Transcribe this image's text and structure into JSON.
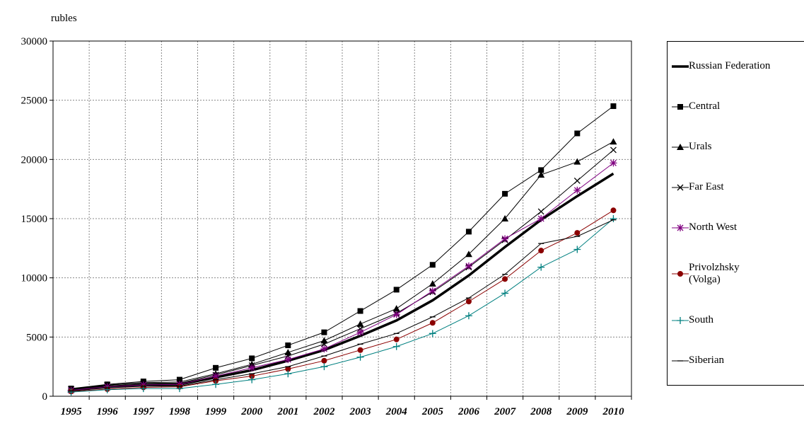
{
  "chart_data": {
    "type": "line",
    "y_label": "rubles",
    "categories": [
      "1995",
      "1996",
      "1997",
      "1998",
      "1999",
      "2000",
      "2001",
      "2002",
      "2003",
      "2004",
      "2005",
      "2006",
      "2007",
      "2008",
      "2009",
      "2010"
    ],
    "ylim": [
      0,
      30000
    ],
    "yticks": [
      0,
      5000,
      10000,
      15000,
      20000,
      25000,
      30000
    ],
    "grid": true,
    "series": [
      {
        "name": "Russian Federation",
        "color": "#000000",
        "marker": "none",
        "width": 3.5,
        "values": [
          550,
          800,
          950,
          1000,
          1600,
          2200,
          3000,
          3900,
          5100,
          6400,
          8100,
          10200,
          12600,
          14900,
          16900,
          18800
        ]
      },
      {
        "name": "Central",
        "color": "#000000",
        "marker": "square",
        "width": 1,
        "values": [
          650,
          1000,
          1250,
          1400,
          2400,
          3200,
          4300,
          5400,
          7200,
          9000,
          11100,
          13900,
          17100,
          19100,
          22200,
          24500
        ]
      },
      {
        "name": "Urals",
        "color": "#000000",
        "marker": "triangle",
        "width": 1,
        "values": [
          600,
          950,
          1150,
          1200,
          1900,
          2700,
          3700,
          4700,
          6100,
          7400,
          9500,
          12000,
          15000,
          18700,
          19800,
          21500
        ]
      },
      {
        "name": "Far East",
        "color": "#000000",
        "marker": "x",
        "width": 1,
        "values": [
          600,
          950,
          1100,
          1100,
          1800,
          2600,
          3400,
          4400,
          5700,
          7000,
          8800,
          10900,
          13200,
          15600,
          18200,
          20800
        ]
      },
      {
        "name": "North West",
        "color": "#800080",
        "marker": "star",
        "width": 1,
        "values": [
          500,
          800,
          950,
          1000,
          1700,
          2400,
          3100,
          4000,
          5400,
          6900,
          8900,
          11000,
          13300,
          15000,
          17400,
          19700
        ]
      },
      {
        "name": "Privolzhsky (Volga)",
        "color": "#8b0000",
        "marker": "circle",
        "width": 1,
        "values": [
          400,
          600,
          750,
          800,
          1300,
          1700,
          2300,
          3000,
          3900,
          4800,
          6200,
          8000,
          9900,
          12300,
          13800,
          15700
        ]
      },
      {
        "name": "South",
        "color": "#008080",
        "marker": "plus",
        "width": 1,
        "values": [
          350,
          550,
          650,
          650,
          1000,
          1400,
          1900,
          2500,
          3300,
          4200,
          5300,
          6800,
          8700,
          10900,
          12400,
          15000
        ]
      },
      {
        "name": "Siberian",
        "color": "#000000",
        "marker": "dash",
        "width": 1,
        "values": [
          450,
          700,
          850,
          850,
          1400,
          1900,
          2500,
          3400,
          4400,
          5300,
          6700,
          8300,
          10300,
          12900,
          13500,
          14900
        ]
      }
    ]
  }
}
